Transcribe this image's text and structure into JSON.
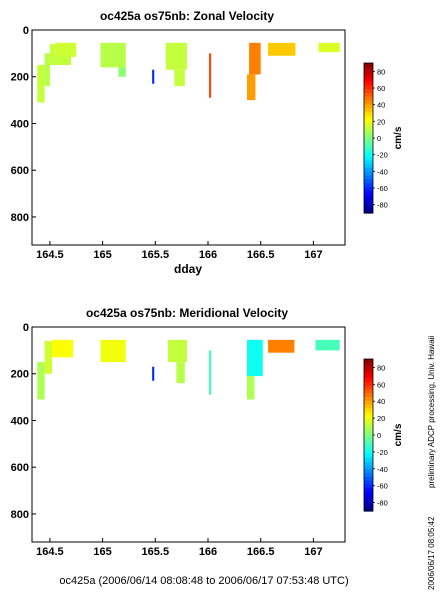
{
  "chart_data": [
    {
      "type": "heatmap",
      "title": "oc425a os75nb: Zonal Velocity",
      "xlabel": "dday",
      "ylabel": "",
      "x_ticks": [
        "164.5",
        "165",
        "165.5",
        "166",
        "166.5",
        "167"
      ],
      "y_ticks": [
        "0",
        "200",
        "400",
        "600",
        "800"
      ],
      "xlim": [
        164.33,
        167.3
      ],
      "ylim": [
        920,
        0
      ],
      "colorbar": {
        "label": "cm/s",
        "range": [
          -90,
          90
        ],
        "ticks": [
          "80",
          "60",
          "40",
          "20",
          "0",
          "-20",
          "-40",
          "-60",
          "-80"
        ]
      },
      "cells": [
        {
          "x0": 164.38,
          "x1": 164.45,
          "y0": 150,
          "y1": 310,
          "v": 12
        },
        {
          "x0": 164.45,
          "x1": 164.5,
          "y0": 100,
          "y1": 240,
          "v": 10
        },
        {
          "x0": 164.5,
          "x1": 164.55,
          "y0": 60,
          "y1": 150,
          "v": 12
        },
        {
          "x0": 164.55,
          "x1": 164.75,
          "y0": 55,
          "y1": 115,
          "v": 14
        },
        {
          "x0": 164.52,
          "x1": 164.7,
          "y0": 110,
          "y1": 150,
          "v": 12
        },
        {
          "x0": 164.98,
          "x1": 165.22,
          "y0": 55,
          "y1": 160,
          "v": 10
        },
        {
          "x0": 165.15,
          "x1": 165.22,
          "y0": 160,
          "y1": 200,
          "v": 2
        },
        {
          "x0": 165.47,
          "x1": 165.49,
          "y0": 170,
          "y1": 230,
          "v": -60
        },
        {
          "x0": 165.6,
          "x1": 165.8,
          "y0": 55,
          "y1": 170,
          "v": 12
        },
        {
          "x0": 165.68,
          "x1": 165.78,
          "y0": 170,
          "y1": 240,
          "v": 12
        },
        {
          "x0": 166.01,
          "x1": 166.03,
          "y0": 100,
          "y1": 290,
          "v": 55
        },
        {
          "x0": 166.39,
          "x1": 166.5,
          "y0": 55,
          "y1": 190,
          "v": 45
        },
        {
          "x0": 166.37,
          "x1": 166.45,
          "y0": 190,
          "y1": 300,
          "v": 40
        },
        {
          "x0": 166.57,
          "x1": 166.83,
          "y0": 55,
          "y1": 110,
          "v": 32
        },
        {
          "x0": 167.05,
          "x1": 167.25,
          "y0": 55,
          "y1": 95,
          "v": 16
        }
      ]
    },
    {
      "type": "heatmap",
      "title": "oc425a os75nb: Meridional Velocity",
      "xlabel": "",
      "ylabel": "",
      "x_ticks": [
        "164.5",
        "165",
        "165.5",
        "166",
        "166.5",
        "167"
      ],
      "y_ticks": [
        "0",
        "200",
        "400",
        "600",
        "800"
      ],
      "xlim": [
        164.33,
        167.3
      ],
      "ylim": [
        920,
        0
      ],
      "colorbar": {
        "label": "cm/s",
        "range": [
          -90,
          90
        ],
        "ticks": [
          "80",
          "60",
          "40",
          "20",
          "0",
          "-20",
          "-40",
          "-60",
          "-80"
        ]
      },
      "cells": [
        {
          "x0": 164.38,
          "x1": 164.45,
          "y0": 150,
          "y1": 310,
          "v": 8
        },
        {
          "x0": 164.45,
          "x1": 164.52,
          "y0": 60,
          "y1": 200,
          "v": 14
        },
        {
          "x0": 164.52,
          "x1": 164.72,
          "y0": 55,
          "y1": 130,
          "v": 22
        },
        {
          "x0": 164.98,
          "x1": 165.22,
          "y0": 55,
          "y1": 150,
          "v": 20
        },
        {
          "x0": 165.47,
          "x1": 165.49,
          "y0": 170,
          "y1": 230,
          "v": -60
        },
        {
          "x0": 165.62,
          "x1": 165.8,
          "y0": 55,
          "y1": 150,
          "v": 12
        },
        {
          "x0": 165.7,
          "x1": 165.78,
          "y0": 150,
          "y1": 240,
          "v": 10
        },
        {
          "x0": 166.01,
          "x1": 166.03,
          "y0": 100,
          "y1": 290,
          "v": -12
        },
        {
          "x0": 166.37,
          "x1": 166.52,
          "y0": 55,
          "y1": 210,
          "v": -20
        },
        {
          "x0": 166.37,
          "x1": 166.44,
          "y0": 210,
          "y1": 310,
          "v": 8
        },
        {
          "x0": 166.57,
          "x1": 166.82,
          "y0": 55,
          "y1": 110,
          "v": 45
        },
        {
          "x0": 167.02,
          "x1": 167.25,
          "y0": 55,
          "y1": 100,
          "v": -10
        }
      ]
    }
  ],
  "footer": {
    "caption": "oc425a (2006/06/14 08:08:48 to 2006/06/17 07:53:48 UTC)",
    "side_note": "preliminary ADCP processing,  Univ. Hawaii",
    "timestamp": "2006/06/17 08:05:42"
  }
}
